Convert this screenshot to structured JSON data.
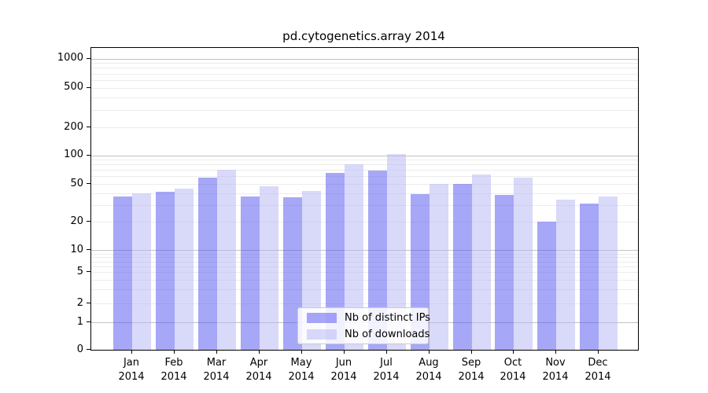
{
  "title": "pd.cytogenetics.array 2014",
  "chart_data": {
    "type": "bar",
    "title": "pd.cytogenetics.array 2014",
    "categories": [
      "Jan 2014",
      "Feb 2014",
      "Mar 2014",
      "Apr 2014",
      "May 2014",
      "Jun 2014",
      "Jul 2014",
      "Aug 2014",
      "Sep 2014",
      "Oct 2014",
      "Nov 2014",
      "Dec 2014"
    ],
    "series": [
      {
        "name": "Nb of distinct IPs",
        "color": "#4f4fef",
        "alpha": 0.5,
        "values": [
          37,
          41,
          58,
          37,
          36,
          65,
          69,
          39,
          50,
          38,
          20,
          31
        ]
      },
      {
        "name": "Nb of downloads",
        "color": "#b3b3f5",
        "alpha": 0.5,
        "values": [
          40,
          45,
          70,
          47,
          42,
          80,
          104,
          50,
          63,
          58,
          34,
          37
        ]
      }
    ],
    "xlabel": "",
    "ylabel": "",
    "yscale": "log above 1, linear 0-1",
    "yticks": [
      1000,
      500,
      200,
      100,
      50,
      20,
      10,
      5,
      2,
      1,
      0
    ],
    "ylim": [
      0,
      1200
    ],
    "grid": "on",
    "legend_position": "lower center"
  }
}
